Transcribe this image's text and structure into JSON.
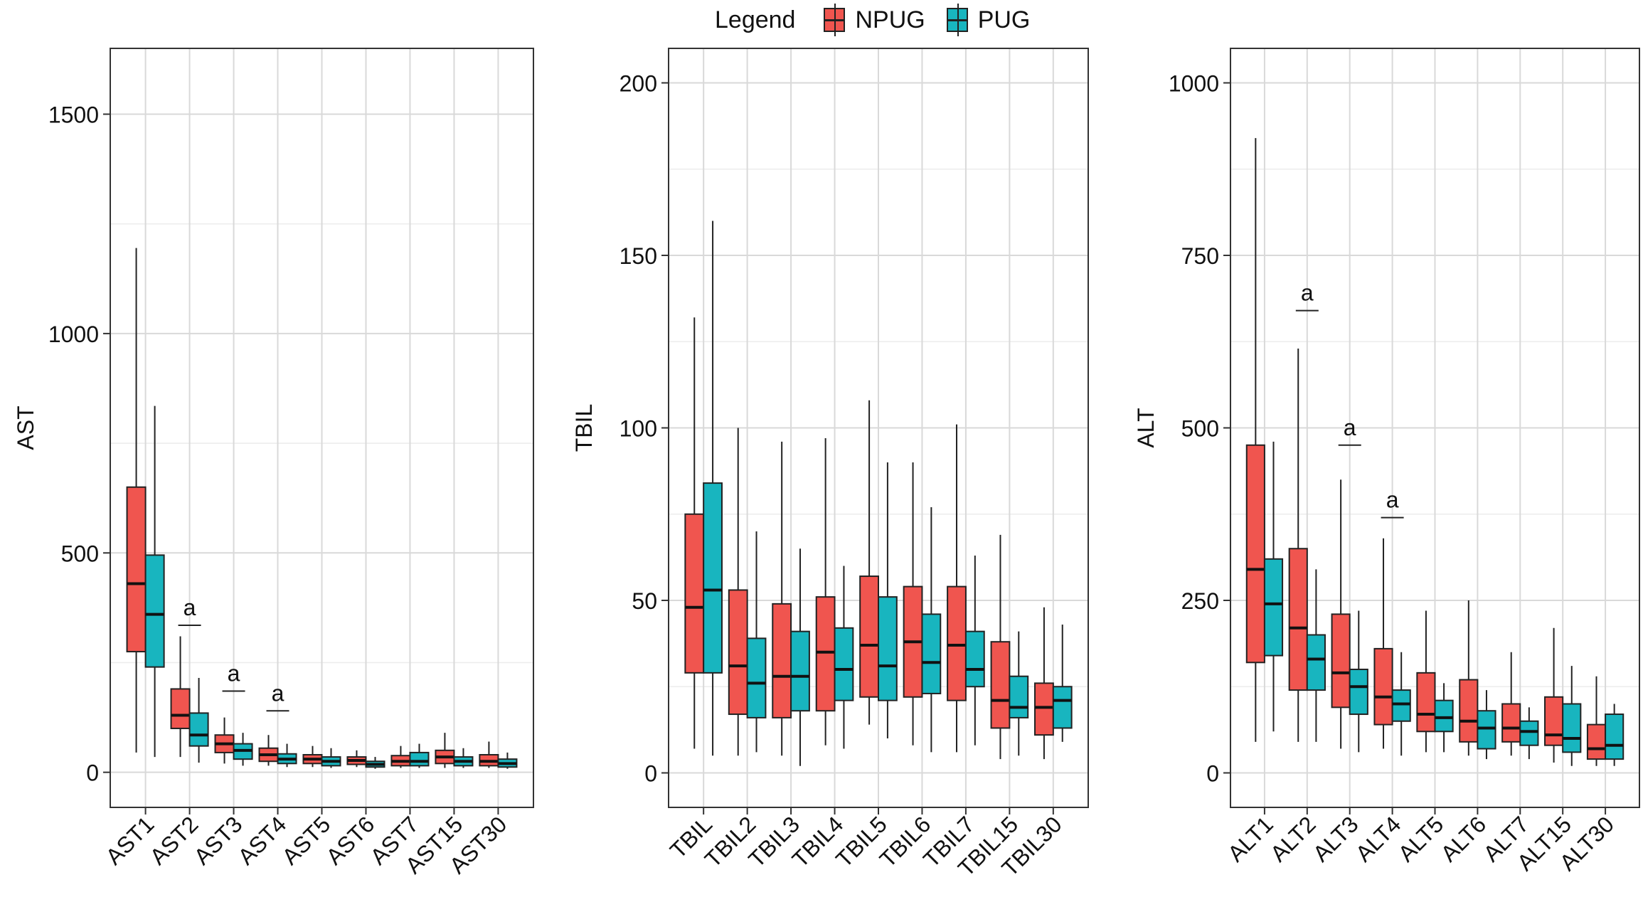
{
  "legend": {
    "title": "Legend",
    "items": [
      {
        "label": "NPUG",
        "color": "#F0554F"
      },
      {
        "label": "PUG",
        "color": "#18B5BF"
      }
    ]
  },
  "chart_data": [
    {
      "type": "boxplot",
      "ylabel": "AST",
      "ylim": [
        -80,
        1650
      ],
      "yticks": [
        0,
        500,
        1000,
        1500
      ],
      "ytick_labels": [
        "0",
        "500",
        "1000",
        "1500"
      ],
      "categories": [
        "AST1",
        "AST2",
        "AST3",
        "AST4",
        "AST5",
        "AST6",
        "AST7",
        "AST15",
        "AST30"
      ],
      "series": [
        {
          "name": "NPUG",
          "boxes": [
            {
              "min": 45,
              "q1": 275,
              "median": 430,
              "q3": 650,
              "max": 1195
            },
            {
              "min": 35,
              "q1": 100,
              "median": 130,
              "q3": 190,
              "max": 310
            },
            {
              "min": 20,
              "q1": 45,
              "median": 65,
              "q3": 85,
              "max": 125
            },
            {
              "min": 15,
              "q1": 25,
              "median": 40,
              "q3": 55,
              "max": 85
            },
            {
              "min": 12,
              "q1": 20,
              "median": 30,
              "q3": 40,
              "max": 60
            },
            {
              "min": 12,
              "q1": 18,
              "median": 27,
              "q3": 35,
              "max": 50
            },
            {
              "min": 10,
              "q1": 15,
              "median": 25,
              "q3": 38,
              "max": 60
            },
            {
              "min": 10,
              "q1": 20,
              "median": 35,
              "q3": 50,
              "max": 90
            },
            {
              "min": 10,
              "q1": 15,
              "median": 25,
              "q3": 40,
              "max": 70
            }
          ]
        },
        {
          "name": "PUG",
          "boxes": [
            {
              "min": 35,
              "q1": 240,
              "median": 360,
              "q3": 495,
              "max": 835
            },
            {
              "min": 22,
              "q1": 60,
              "median": 85,
              "q3": 135,
              "max": 215
            },
            {
              "min": 15,
              "q1": 30,
              "median": 50,
              "q3": 65,
              "max": 90
            },
            {
              "min": 12,
              "q1": 20,
              "median": 30,
              "q3": 42,
              "max": 65
            },
            {
              "min": 10,
              "q1": 15,
              "median": 25,
              "q3": 35,
              "max": 55
            },
            {
              "min": 8,
              "q1": 12,
              "median": 18,
              "q3": 25,
              "max": 35
            },
            {
              "min": 10,
              "q1": 15,
              "median": 25,
              "q3": 45,
              "max": 65
            },
            {
              "min": 10,
              "q1": 15,
              "median": 25,
              "q3": 35,
              "max": 55
            },
            {
              "min": 8,
              "q1": 12,
              "median": 20,
              "q3": 30,
              "max": 45
            }
          ]
        }
      ],
      "annotations": [
        {
          "category": "AST2",
          "text": "a",
          "value": 335
        },
        {
          "category": "AST3",
          "text": "a",
          "value": 185
        },
        {
          "category": "AST4",
          "text": "a",
          "value": 140
        }
      ]
    },
    {
      "type": "boxplot",
      "ylabel": "TBIL",
      "ylim": [
        -10,
        210
      ],
      "yticks": [
        0,
        50,
        100,
        150,
        200
      ],
      "ytick_labels": [
        "0",
        "50",
        "100",
        "150",
        "200"
      ],
      "categories": [
        "TBIL",
        "TBIL2",
        "TBIL3",
        "TBIL4",
        "TBIL5",
        "TBIL6",
        "TBIL7",
        "TBIL15",
        "TBIL30"
      ],
      "series": [
        {
          "name": "NPUG",
          "boxes": [
            {
              "min": 7,
              "q1": 29,
              "median": 48,
              "q3": 75,
              "max": 132
            },
            {
              "min": 5,
              "q1": 17,
              "median": 31,
              "q3": 53,
              "max": 100
            },
            {
              "min": 5,
              "q1": 16,
              "median": 28,
              "q3": 49,
              "max": 96
            },
            {
              "min": 8,
              "q1": 18,
              "median": 35,
              "q3": 51,
              "max": 97
            },
            {
              "min": 14,
              "q1": 22,
              "median": 37,
              "q3": 57,
              "max": 108
            },
            {
              "min": 8,
              "q1": 22,
              "median": 38,
              "q3": 54,
              "max": 90
            },
            {
              "min": 6,
              "q1": 21,
              "median": 37,
              "q3": 54,
              "max": 101
            },
            {
              "min": 4,
              "q1": 13,
              "median": 21,
              "q3": 38,
              "max": 69
            },
            {
              "min": 4,
              "q1": 11,
              "median": 19,
              "q3": 26,
              "max": 48
            }
          ]
        },
        {
          "name": "PUG",
          "boxes": [
            {
              "min": 5,
              "q1": 29,
              "median": 53,
              "q3": 84,
              "max": 160
            },
            {
              "min": 6,
              "q1": 16,
              "median": 26,
              "q3": 39,
              "max": 70
            },
            {
              "min": 2,
              "q1": 18,
              "median": 28,
              "q3": 41,
              "max": 65
            },
            {
              "min": 7,
              "q1": 21,
              "median": 30,
              "q3": 42,
              "max": 60
            },
            {
              "min": 10,
              "q1": 21,
              "median": 31,
              "q3": 51,
              "max": 90
            },
            {
              "min": 6,
              "q1": 23,
              "median": 32,
              "q3": 46,
              "max": 77
            },
            {
              "min": 8,
              "q1": 25,
              "median": 30,
              "q3": 41,
              "max": 63
            },
            {
              "min": 5,
              "q1": 16,
              "median": 19,
              "q3": 28,
              "max": 41
            },
            {
              "min": 9,
              "q1": 13,
              "median": 21,
              "q3": 25,
              "max": 43
            }
          ]
        }
      ],
      "annotations": []
    },
    {
      "type": "boxplot",
      "ylabel": "ALT",
      "ylim": [
        -50,
        1050
      ],
      "yticks": [
        0,
        250,
        500,
        750,
        1000
      ],
      "ytick_labels": [
        "0",
        "250",
        "500",
        "750",
        "1000"
      ],
      "categories": [
        "ALT1",
        "ALT2",
        "ALT3",
        "ALT4",
        "ALT5",
        "ALT6",
        "ALT7",
        "ALT15",
        "ALT30"
      ],
      "series": [
        {
          "name": "NPUG",
          "boxes": [
            {
              "min": 45,
              "q1": 160,
              "median": 295,
              "q3": 475,
              "max": 920
            },
            {
              "min": 45,
              "q1": 120,
              "median": 210,
              "q3": 325,
              "max": 615
            },
            {
              "min": 35,
              "q1": 95,
              "median": 145,
              "q3": 230,
              "max": 425
            },
            {
              "min": 35,
              "q1": 70,
              "median": 110,
              "q3": 180,
              "max": 340
            },
            {
              "min": 30,
              "q1": 60,
              "median": 85,
              "q3": 145,
              "max": 235
            },
            {
              "min": 25,
              "q1": 45,
              "median": 75,
              "q3": 135,
              "max": 250
            },
            {
              "min": 25,
              "q1": 45,
              "median": 65,
              "q3": 100,
              "max": 175
            },
            {
              "min": 15,
              "q1": 40,
              "median": 55,
              "q3": 110,
              "max": 210
            },
            {
              "min": 10,
              "q1": 20,
              "median": 35,
              "q3": 70,
              "max": 140
            }
          ]
        },
        {
          "name": "PUG",
          "boxes": [
            {
              "min": 60,
              "q1": 170,
              "median": 245,
              "q3": 310,
              "max": 480
            },
            {
              "min": 45,
              "q1": 120,
              "median": 165,
              "q3": 200,
              "max": 295
            },
            {
              "min": 30,
              "q1": 85,
              "median": 125,
              "q3": 150,
              "max": 235
            },
            {
              "min": 25,
              "q1": 75,
              "median": 100,
              "q3": 120,
              "max": 175
            },
            {
              "min": 30,
              "q1": 60,
              "median": 80,
              "q3": 105,
              "max": 130
            },
            {
              "min": 20,
              "q1": 35,
              "median": 65,
              "q3": 90,
              "max": 120
            },
            {
              "min": 20,
              "q1": 40,
              "median": 60,
              "q3": 75,
              "max": 95
            },
            {
              "min": 10,
              "q1": 30,
              "median": 50,
              "q3": 100,
              "max": 155
            },
            {
              "min": 10,
              "q1": 20,
              "median": 40,
              "q3": 85,
              "max": 100
            }
          ]
        }
      ],
      "annotations": [
        {
          "category": "ALT2",
          "text": "a",
          "value": 670
        },
        {
          "category": "ALT3",
          "text": "a",
          "value": 475
        },
        {
          "category": "ALT4",
          "text": "a",
          "value": 370
        }
      ]
    }
  ]
}
